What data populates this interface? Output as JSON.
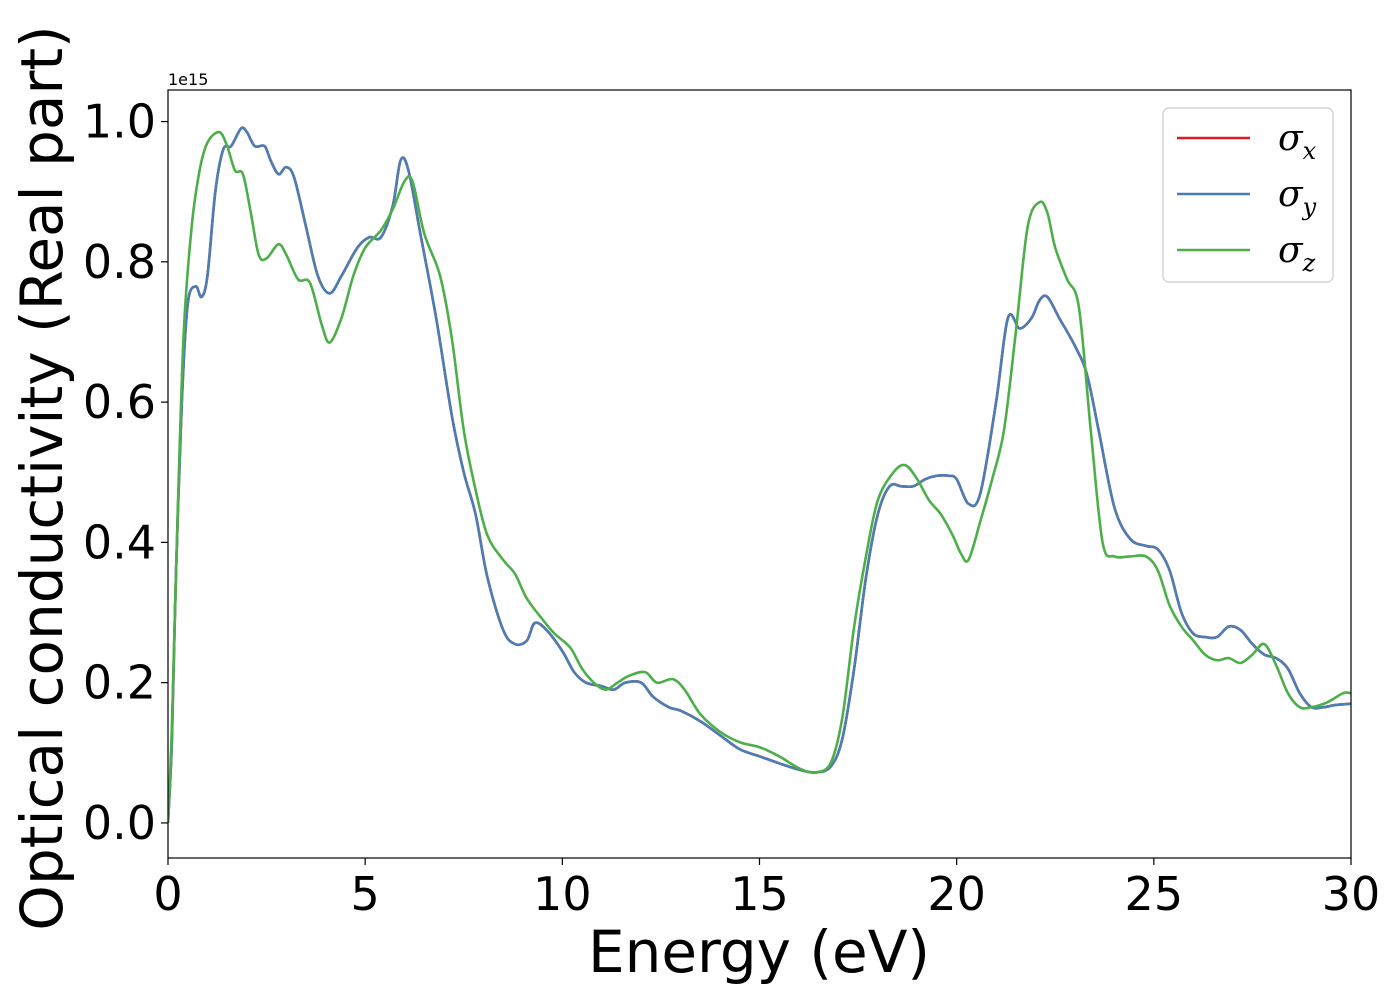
{
  "chart_data": {
    "type": "line",
    "title": "",
    "xlabel": "Energy (eV)",
    "ylabel": "Optical conductivity (Real part)",
    "y_offset_label": "1e15",
    "xlim": [
      0,
      30
    ],
    "ylim": [
      -0.05,
      1.045
    ],
    "xticks": [
      0,
      5,
      10,
      15,
      20,
      25,
      30
    ],
    "xtick_labels": [
      "0",
      "5",
      "10",
      "15",
      "20",
      "25",
      "30"
    ],
    "yticks": [
      0.0,
      0.2,
      0.4,
      0.6,
      0.8,
      1.0
    ],
    "ytick_labels": [
      "0.0",
      "0.2",
      "0.4",
      "0.6",
      "0.8",
      "1.0"
    ],
    "grid": false,
    "legend_position": "top-right",
    "series": [
      {
        "name": "σx",
        "symbol": "σ",
        "subscript": "x",
        "color": "#e41a1c",
        "x": [
          0,
          0.1,
          0.2,
          0.35,
          0.5,
          0.7,
          0.85,
          1.0,
          1.2,
          1.4,
          1.6,
          1.85,
          2.0,
          2.2,
          2.45,
          2.6,
          2.8,
          3.0,
          3.2,
          3.5,
          3.8,
          4.1,
          4.4,
          4.8,
          5.1,
          5.4,
          5.7,
          5.9,
          6.1,
          6.4,
          6.8,
          7.2,
          7.5,
          7.8,
          8.1,
          8.5,
          8.8,
          9.1,
          9.3,
          9.6,
          10.0,
          10.3,
          10.6,
          11.0,
          11.3,
          11.6,
          12.0,
          12.3,
          12.7,
          13.0,
          13.5,
          14.0,
          14.5,
          15.0,
          15.5,
          16.0,
          16.4,
          16.8,
          17.1,
          17.4,
          17.7,
          18.0,
          18.3,
          18.6,
          18.9,
          19.2,
          19.5,
          19.8,
          20.0,
          20.3,
          20.6,
          21.0,
          21.3,
          21.6,
          21.9,
          22.1,
          22.3,
          22.6,
          23.0,
          23.3,
          23.6,
          24.0,
          24.4,
          24.8,
          25.1,
          25.4,
          25.7,
          26.0,
          26.3,
          26.6,
          26.9,
          27.2,
          27.5,
          27.8,
          28.1,
          28.4,
          28.7,
          29.0,
          29.3,
          29.6,
          30.0
        ],
        "values": [
          0.0,
          0.12,
          0.35,
          0.6,
          0.74,
          0.765,
          0.75,
          0.78,
          0.9,
          0.96,
          0.965,
          0.99,
          0.985,
          0.965,
          0.965,
          0.945,
          0.925,
          0.935,
          0.92,
          0.85,
          0.78,
          0.755,
          0.78,
          0.82,
          0.835,
          0.835,
          0.88,
          0.945,
          0.93,
          0.84,
          0.72,
          0.58,
          0.5,
          0.44,
          0.35,
          0.275,
          0.255,
          0.26,
          0.285,
          0.275,
          0.245,
          0.215,
          0.2,
          0.195,
          0.19,
          0.2,
          0.2,
          0.18,
          0.165,
          0.16,
          0.145,
          0.125,
          0.105,
          0.095,
          0.085,
          0.076,
          0.072,
          0.08,
          0.12,
          0.22,
          0.35,
          0.44,
          0.48,
          0.48,
          0.48,
          0.49,
          0.495,
          0.495,
          0.49,
          0.455,
          0.47,
          0.6,
          0.72,
          0.705,
          0.72,
          0.745,
          0.75,
          0.72,
          0.68,
          0.64,
          0.56,
          0.45,
          0.405,
          0.395,
          0.39,
          0.36,
          0.3,
          0.27,
          0.265,
          0.265,
          0.28,
          0.275,
          0.255,
          0.24,
          0.235,
          0.22,
          0.185,
          0.165,
          0.165,
          0.168,
          0.17
        ]
      },
      {
        "name": "σy",
        "symbol": "σ",
        "subscript": "y",
        "color": "#4a7fb5",
        "x": [
          0,
          0.1,
          0.2,
          0.35,
          0.5,
          0.7,
          0.85,
          1.0,
          1.2,
          1.4,
          1.6,
          1.85,
          2.0,
          2.2,
          2.45,
          2.6,
          2.8,
          3.0,
          3.2,
          3.5,
          3.8,
          4.1,
          4.4,
          4.8,
          5.1,
          5.4,
          5.7,
          5.9,
          6.1,
          6.4,
          6.8,
          7.2,
          7.5,
          7.8,
          8.1,
          8.5,
          8.8,
          9.1,
          9.3,
          9.6,
          10.0,
          10.3,
          10.6,
          11.0,
          11.3,
          11.6,
          12.0,
          12.3,
          12.7,
          13.0,
          13.5,
          14.0,
          14.5,
          15.0,
          15.5,
          16.0,
          16.4,
          16.8,
          17.1,
          17.4,
          17.7,
          18.0,
          18.3,
          18.6,
          18.9,
          19.2,
          19.5,
          19.8,
          20.0,
          20.3,
          20.6,
          21.0,
          21.3,
          21.6,
          21.9,
          22.1,
          22.3,
          22.6,
          23.0,
          23.3,
          23.6,
          24.0,
          24.4,
          24.8,
          25.1,
          25.4,
          25.7,
          26.0,
          26.3,
          26.6,
          26.9,
          27.2,
          27.5,
          27.8,
          28.1,
          28.4,
          28.7,
          29.0,
          29.3,
          29.6,
          30.0
        ],
        "values": [
          0.0,
          0.12,
          0.35,
          0.6,
          0.74,
          0.765,
          0.75,
          0.78,
          0.9,
          0.96,
          0.965,
          0.99,
          0.985,
          0.965,
          0.965,
          0.945,
          0.925,
          0.935,
          0.92,
          0.85,
          0.78,
          0.755,
          0.78,
          0.82,
          0.835,
          0.835,
          0.88,
          0.945,
          0.93,
          0.84,
          0.72,
          0.58,
          0.5,
          0.44,
          0.35,
          0.275,
          0.255,
          0.26,
          0.285,
          0.275,
          0.245,
          0.215,
          0.2,
          0.195,
          0.19,
          0.2,
          0.2,
          0.18,
          0.165,
          0.16,
          0.145,
          0.125,
          0.105,
          0.095,
          0.085,
          0.076,
          0.072,
          0.08,
          0.12,
          0.22,
          0.35,
          0.44,
          0.48,
          0.48,
          0.48,
          0.49,
          0.495,
          0.495,
          0.49,
          0.455,
          0.47,
          0.6,
          0.72,
          0.705,
          0.72,
          0.745,
          0.75,
          0.72,
          0.68,
          0.64,
          0.56,
          0.45,
          0.405,
          0.395,
          0.39,
          0.36,
          0.3,
          0.27,
          0.265,
          0.265,
          0.28,
          0.275,
          0.255,
          0.24,
          0.235,
          0.22,
          0.185,
          0.165,
          0.165,
          0.168,
          0.17
        ]
      },
      {
        "name": "σz",
        "symbol": "σ",
        "subscript": "z",
        "color": "#4daf4a",
        "x": [
          0,
          0.1,
          0.25,
          0.4,
          0.6,
          0.8,
          1.0,
          1.3,
          1.5,
          1.7,
          1.9,
          2.1,
          2.3,
          2.5,
          2.8,
          3.0,
          3.3,
          3.6,
          3.9,
          4.1,
          4.4,
          4.7,
          5.0,
          5.4,
          5.7,
          6.0,
          6.2,
          6.5,
          6.9,
          7.2,
          7.5,
          7.8,
          8.1,
          8.5,
          8.8,
          9.1,
          9.5,
          9.8,
          10.2,
          10.5,
          10.8,
          11.1,
          11.4,
          11.7,
          12.1,
          12.4,
          12.8,
          13.1,
          13.5,
          14.0,
          14.5,
          15.0,
          15.5,
          16.0,
          16.4,
          16.8,
          17.1,
          17.4,
          17.7,
          18.0,
          18.4,
          18.7,
          19.0,
          19.3,
          19.6,
          19.9,
          20.1,
          20.3,
          20.6,
          20.9,
          21.2,
          21.5,
          21.8,
          22.1,
          22.3,
          22.5,
          22.8,
          23.1,
          23.4,
          23.7,
          24.0,
          24.4,
          24.8,
          25.1,
          25.4,
          25.7,
          26.0,
          26.3,
          26.6,
          26.9,
          27.2,
          27.5,
          27.8,
          28.1,
          28.4,
          28.7,
          29.0,
          29.4,
          29.8,
          30.0
        ],
        "values": [
          0.0,
          0.14,
          0.45,
          0.7,
          0.85,
          0.93,
          0.97,
          0.985,
          0.965,
          0.93,
          0.925,
          0.87,
          0.81,
          0.805,
          0.825,
          0.81,
          0.775,
          0.77,
          0.71,
          0.685,
          0.72,
          0.78,
          0.82,
          0.845,
          0.875,
          0.915,
          0.915,
          0.84,
          0.78,
          0.69,
          0.56,
          0.475,
          0.41,
          0.375,
          0.355,
          0.32,
          0.29,
          0.27,
          0.25,
          0.22,
          0.2,
          0.19,
          0.2,
          0.21,
          0.215,
          0.2,
          0.205,
          0.19,
          0.155,
          0.13,
          0.115,
          0.108,
          0.095,
          0.078,
          0.072,
          0.085,
          0.15,
          0.28,
          0.38,
          0.46,
          0.5,
          0.51,
          0.49,
          0.46,
          0.44,
          0.41,
          0.385,
          0.375,
          0.43,
          0.49,
          0.56,
          0.7,
          0.85,
          0.885,
          0.87,
          0.82,
          0.775,
          0.735,
          0.56,
          0.4,
          0.38,
          0.38,
          0.38,
          0.36,
          0.31,
          0.28,
          0.26,
          0.24,
          0.232,
          0.235,
          0.228,
          0.24,
          0.255,
          0.225,
          0.185,
          0.165,
          0.165,
          0.172,
          0.185,
          0.185
        ]
      }
    ]
  }
}
